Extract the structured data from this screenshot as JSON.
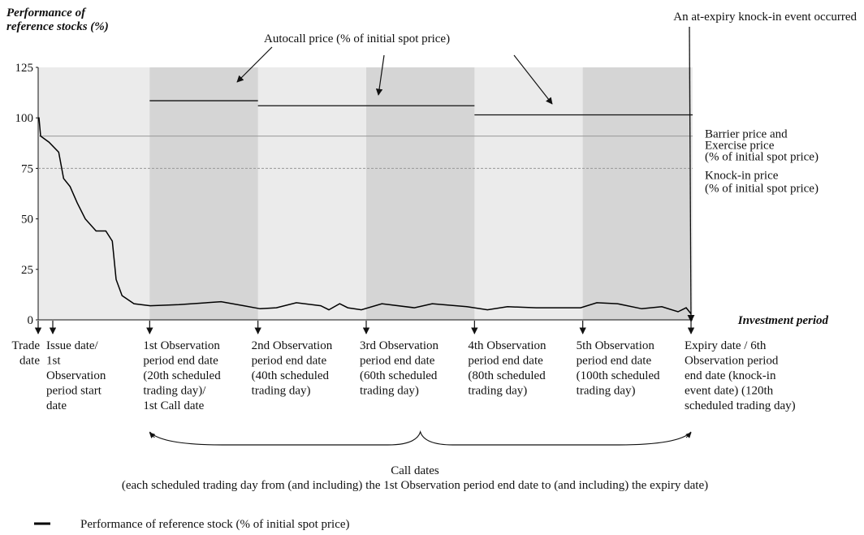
{
  "chart_data": {
    "type": "line",
    "title_lines": [
      "Performance of",
      "reference stocks (%)"
    ],
    "xlabel": "Investment period",
    "xlim": [
      -0.6,
      120
    ],
    "ylim": [
      0,
      125
    ],
    "yticks": [
      0,
      25,
      50,
      75,
      100,
      125
    ],
    "background": "#ebebeb",
    "band_color": "#d5d5d5",
    "observation_bands": [
      [
        20,
        40
      ],
      [
        60,
        80
      ],
      [
        100,
        120
      ]
    ],
    "series": [
      {
        "name": "Performance of reference stock (% of initial spot price)",
        "color": "#000000",
        "x": [
          -0.6,
          -0.45,
          -0.15,
          1.4,
          3.2,
          4.1,
          5.3,
          6.6,
          8.1,
          10.1,
          11.9,
          13.1,
          13.8,
          14.9,
          17.1,
          20.1,
          25.4,
          33.2,
          37.4,
          40.4,
          43.4,
          47.1,
          51.6,
          53.1,
          55.1,
          56.6,
          59.1,
          62.9,
          68.9,
          72.2,
          78.6,
          82.4,
          86.1,
          91.4,
          99.6,
          102.6,
          106.4,
          110.9,
          114.6,
          117.6,
          119.1,
          120
        ],
        "values": [
          100,
          100,
          91,
          88,
          83,
          70,
          66,
          58,
          50,
          44,
          44,
          39,
          20,
          12,
          8,
          7,
          7.5,
          9,
          7,
          5.5,
          6,
          8.5,
          7,
          5,
          8,
          6,
          5,
          8,
          6,
          8,
          6.5,
          5,
          6.5,
          6,
          6,
          8.5,
          8,
          5.5,
          6.5,
          4,
          6,
          3
        ]
      }
    ],
    "autocall": {
      "label": "Autocall price (% of initial spot price)",
      "segments": [
        {
          "x": [
            20,
            40
          ],
          "value": 108.5
        },
        {
          "x": [
            40,
            80
          ],
          "value": 106
        },
        {
          "x": [
            80,
            120
          ],
          "value": 101.5
        }
      ]
    },
    "barrier": {
      "value": 91,
      "label_lines": [
        "Barrier price and",
        "Exercise price",
        "(% of initial spot price)"
      ]
    },
    "knock_in": {
      "value": 75,
      "label_lines": [
        "Knock-in price",
        "(% of initial spot price)"
      ]
    },
    "knock_in_annotation": "An at-expiry knock-in event occurred",
    "events": [
      {
        "x": -0.6,
        "label_lines": [
          "Trade",
          "date"
        ]
      },
      {
        "x": 2.1,
        "label_lines": [
          "Issue date/",
          "1st",
          "Observation",
          "period start",
          "date"
        ]
      },
      {
        "x": 20,
        "label_lines": [
          "1st Observation",
          "period end date",
          "(20th scheduled",
          "trading day)/",
          "1st Call date"
        ]
      },
      {
        "x": 40,
        "label_lines": [
          "2nd Observation",
          "period end date",
          "(40th scheduled",
          "trading day)"
        ]
      },
      {
        "x": 60,
        "label_lines": [
          "3rd  Observation",
          "period end date",
          "(60th scheduled",
          "trading day)"
        ]
      },
      {
        "x": 80,
        "label_lines": [
          "4th Observation",
          "period end date",
          "(80th scheduled",
          "trading day)"
        ]
      },
      {
        "x": 100,
        "label_lines": [
          "5th Observation",
          "period end date",
          " (100th scheduled",
          "trading day)"
        ]
      },
      {
        "x": 120,
        "label_lines": [
          "Expiry date / 6th",
          "Observation period",
          "end date (knock-in",
          "event date) (120th",
          "scheduled trading day)"
        ]
      }
    ],
    "call_dates": {
      "title": "Call dates",
      "note": "(each scheduled trading day from (and including) the 1st Observation period end date to (and including) the expiry date)"
    }
  }
}
